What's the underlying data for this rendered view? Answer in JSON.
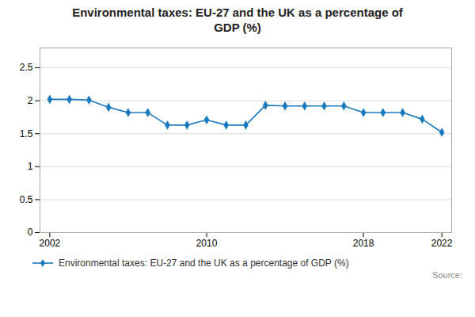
{
  "chart_data": {
    "type": "line",
    "title": "Environmental taxes: EU-27 and the UK as a percentage of\nGDP (%)",
    "x": [
      2002,
      2003,
      2004,
      2005,
      2006,
      2007,
      2008,
      2009,
      2010,
      2011,
      2012,
      2013,
      2014,
      2015,
      2016,
      2017,
      2018,
      2019,
      2020,
      2021,
      2022
    ],
    "series": [
      {
        "name": "Environmental taxes: EU-27 and the UK as a percentage of GDP (%)",
        "color": "#1a7abf",
        "marker": "diamond",
        "values": [
          2.02,
          2.02,
          2.01,
          1.9,
          1.82,
          1.82,
          1.63,
          1.63,
          1.71,
          1.63,
          1.63,
          1.93,
          1.92,
          1.92,
          1.92,
          1.92,
          1.82,
          1.82,
          1.82,
          1.72,
          1.52
        ]
      }
    ],
    "xlim": [
      2001.5,
      2022.5
    ],
    "xticks": [
      2002,
      2010,
      2018,
      2022
    ],
    "ylim": [
      0,
      2.8
    ],
    "yticks": [
      0,
      0.5,
      1,
      1.5,
      2,
      2.5
    ],
    "grid": true,
    "legend": "lower left",
    "annotations": [
      "Source:"
    ]
  }
}
